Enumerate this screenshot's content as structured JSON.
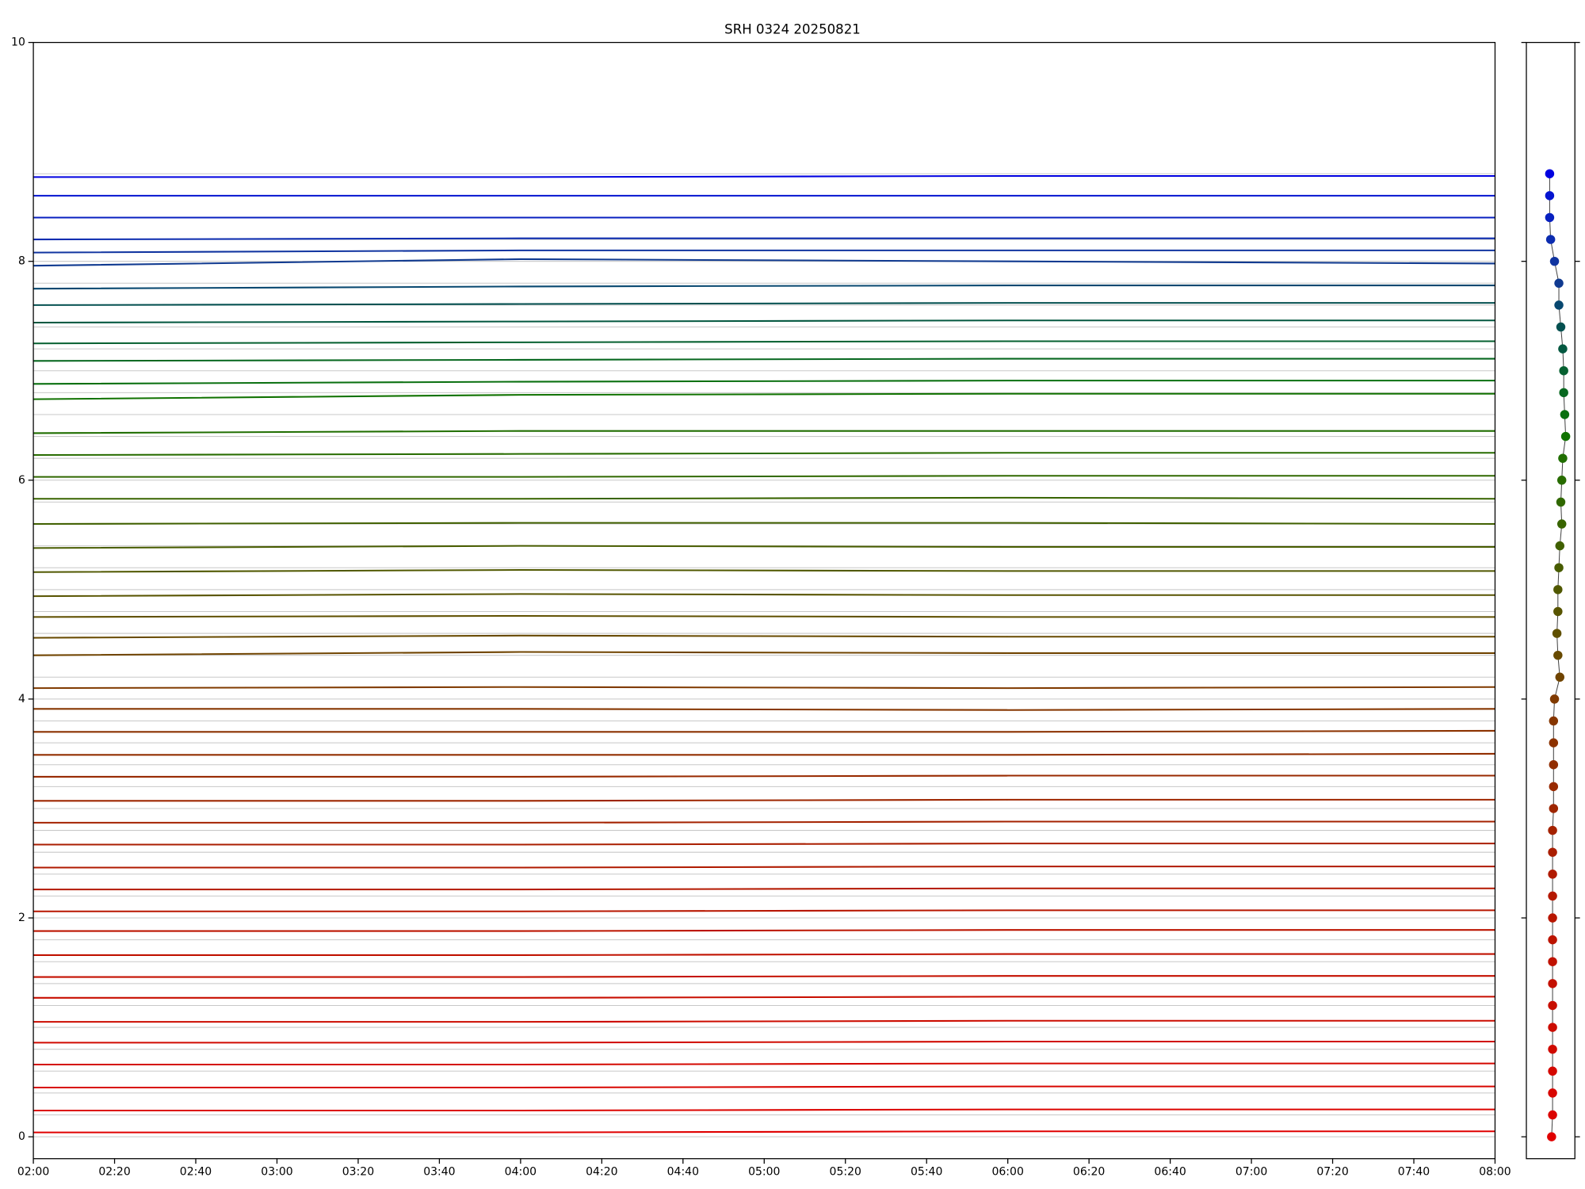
{
  "chart_data": [
    {
      "type": "line",
      "title": "SRH 0324 20250821",
      "x": [
        "02:00",
        "04:00",
        "06:00",
        "08:00"
      ],
      "xlim": [
        "02:00",
        "08:00"
      ],
      "xticks": [
        "02:00",
        "02:20",
        "02:40",
        "03:00",
        "03:20",
        "03:40",
        "04:00",
        "04:20",
        "04:40",
        "05:00",
        "05:20",
        "05:40",
        "06:00",
        "06:20",
        "06:40",
        "07:00",
        "07:20",
        "07:40",
        "08:00"
      ],
      "ylim": [
        -0.2,
        10
      ],
      "yticks": [
        0,
        2,
        4,
        6,
        8,
        10
      ],
      "series": [
        {
          "color": "#e00000",
          "values": [
            0.04,
            0.04,
            0.05,
            0.05
          ]
        },
        {
          "color": "#dc0400",
          "values": [
            0.24,
            0.24,
            0.25,
            0.25
          ]
        },
        {
          "color": "#d80600",
          "values": [
            0.45,
            0.45,
            0.46,
            0.46
          ]
        },
        {
          "color": "#d40800",
          "values": [
            0.66,
            0.66,
            0.67,
            0.67
          ]
        },
        {
          "color": "#d00a00",
          "values": [
            0.86,
            0.86,
            0.87,
            0.87
          ]
        },
        {
          "color": "#cc0c00",
          "values": [
            1.05,
            1.05,
            1.06,
            1.06
          ]
        },
        {
          "color": "#c80e00",
          "values": [
            1.27,
            1.27,
            1.28,
            1.28
          ]
        },
        {
          "color": "#c41000",
          "values": [
            1.46,
            1.46,
            1.47,
            1.47
          ]
        },
        {
          "color": "#c01200",
          "values": [
            1.66,
            1.66,
            1.67,
            1.67
          ]
        },
        {
          "color": "#bc1400",
          "values": [
            1.88,
            1.88,
            1.89,
            1.89
          ]
        },
        {
          "color": "#b81600",
          "values": [
            2.06,
            2.06,
            2.07,
            2.07
          ]
        },
        {
          "color": "#b41800",
          "values": [
            2.26,
            2.26,
            2.27,
            2.27
          ]
        },
        {
          "color": "#b01a00",
          "values": [
            2.46,
            2.46,
            2.47,
            2.47
          ]
        },
        {
          "color": "#aa1e00",
          "values": [
            2.67,
            2.67,
            2.68,
            2.68
          ]
        },
        {
          "color": "#a42200",
          "values": [
            2.87,
            2.87,
            2.88,
            2.88
          ]
        },
        {
          "color": "#9e2600",
          "values": [
            3.07,
            3.07,
            3.08,
            3.08
          ]
        },
        {
          "color": "#982a00",
          "values": [
            3.29,
            3.29,
            3.3,
            3.3
          ]
        },
        {
          "color": "#922e00",
          "values": [
            3.49,
            3.49,
            3.49,
            3.5
          ]
        },
        {
          "color": "#8c3200",
          "values": [
            3.7,
            3.7,
            3.7,
            3.71
          ]
        },
        {
          "color": "#863600",
          "values": [
            3.91,
            3.91,
            3.9,
            3.91
          ]
        },
        {
          "color": "#803a00",
          "values": [
            4.1,
            4.11,
            4.1,
            4.11
          ]
        },
        {
          "color": "#704400",
          "values": [
            4.4,
            4.43,
            4.42,
            4.42
          ]
        },
        {
          "color": "#684a00",
          "values": [
            4.56,
            4.58,
            4.57,
            4.57
          ]
        },
        {
          "color": "#605000",
          "values": [
            4.75,
            4.76,
            4.75,
            4.75
          ]
        },
        {
          "color": "#585400",
          "values": [
            4.94,
            4.96,
            4.95,
            4.95
          ]
        },
        {
          "color": "#505800",
          "values": [
            5.16,
            5.18,
            5.17,
            5.17
          ]
        },
        {
          "color": "#485c00",
          "values": [
            5.38,
            5.4,
            5.39,
            5.39
          ]
        },
        {
          "color": "#406000",
          "values": [
            5.6,
            5.61,
            5.61,
            5.6
          ]
        },
        {
          "color": "#386400",
          "values": [
            5.83,
            5.83,
            5.84,
            5.83
          ]
        },
        {
          "color": "#306800",
          "values": [
            6.03,
            6.03,
            6.04,
            6.04
          ]
        },
        {
          "color": "#286c00",
          "values": [
            6.23,
            6.24,
            6.25,
            6.25
          ]
        },
        {
          "color": "#206e00",
          "values": [
            6.43,
            6.45,
            6.45,
            6.45
          ]
        },
        {
          "color": "#107200",
          "values": [
            6.74,
            6.78,
            6.79,
            6.79
          ]
        },
        {
          "color": "#0a7010",
          "values": [
            6.88,
            6.9,
            6.91,
            6.91
          ]
        },
        {
          "color": "#086820",
          "values": [
            7.09,
            7.1,
            7.11,
            7.11
          ]
        },
        {
          "color": "#066030",
          "values": [
            7.25,
            7.26,
            7.27,
            7.27
          ]
        },
        {
          "color": "#045840",
          "values": [
            7.44,
            7.45,
            7.46,
            7.46
          ]
        },
        {
          "color": "#045050",
          "values": [
            7.6,
            7.61,
            7.62,
            7.62
          ]
        },
        {
          "color": "#084870",
          "values": [
            7.75,
            7.77,
            7.78,
            7.78
          ]
        },
        {
          "color": "#103a90",
          "values": [
            7.96,
            8.02,
            8.0,
            7.98
          ]
        },
        {
          "color": "#1034a0",
          "values": [
            8.08,
            8.1,
            8.1,
            8.1
          ]
        },
        {
          "color": "#0c2cb0",
          "values": [
            8.2,
            8.21,
            8.21,
            8.21
          ]
        },
        {
          "color": "#0820c0",
          "values": [
            8.4,
            8.4,
            8.4,
            8.4
          ]
        },
        {
          "color": "#0414d0",
          "values": [
            8.6,
            8.6,
            8.6,
            8.6
          ]
        },
        {
          "color": "#0000e0",
          "values": [
            8.77,
            8.77,
            8.78,
            8.78
          ]
        }
      ]
    },
    {
      "type": "scatter",
      "xlim": [
        0,
        1
      ],
      "ylim": [
        -0.2,
        10
      ],
      "yticks": [
        0,
        2,
        4,
        6,
        8,
        10
      ],
      "line_color": "#444444",
      "x": [
        0.52,
        0.54,
        0.54,
        0.54,
        0.54,
        0.54,
        0.54,
        0.54,
        0.54,
        0.54,
        0.54,
        0.54,
        0.54,
        0.54,
        0.54,
        0.56,
        0.56,
        0.56,
        0.56,
        0.56,
        0.58,
        0.69,
        0.65,
        0.63,
        0.65,
        0.65,
        0.67,
        0.69,
        0.73,
        0.71,
        0.73,
        0.75,
        0.81,
        0.79,
        0.77,
        0.77,
        0.75,
        0.71,
        0.67,
        0.67,
        0.58,
        0.5,
        0.48,
        0.48,
        0.48
      ],
      "values": [
        0,
        0.2,
        0.4,
        0.6,
        0.8,
        1,
        1.2,
        1.4,
        1.6,
        1.8,
        2,
        2.2,
        2.4,
        2.6,
        2.8,
        3,
        3.2,
        3.4,
        3.6,
        3.8,
        4,
        4.2,
        4.4,
        4.6,
        4.8,
        5,
        5.2,
        5.4,
        5.6,
        5.8,
        6,
        6.2,
        6.4,
        6.6,
        6.8,
        7,
        7.2,
        7.4,
        7.6,
        7.8,
        8,
        8.2,
        8.4,
        8.6,
        8.8
      ],
      "colors": [
        "#e00000",
        "#dc0400",
        "#d80600",
        "#d40800",
        "#d00a00",
        "#cc0c00",
        "#c80e00",
        "#c41000",
        "#c01200",
        "#bc1400",
        "#b81600",
        "#b41800",
        "#b01a00",
        "#aa1e00",
        "#a42200",
        "#9e2600",
        "#982a00",
        "#922e00",
        "#8c3200",
        "#863600",
        "#803a00",
        "#704400",
        "#684a00",
        "#605000",
        "#585400",
        "#505800",
        "#485c00",
        "#406000",
        "#386400",
        "#306800",
        "#286c00",
        "#206e00",
        "#107200",
        "#0a7010",
        "#086820",
        "#066030",
        "#045840",
        "#045050",
        "#084870",
        "#103a90",
        "#1034a0",
        "#0c2cb0",
        "#0820c0",
        "#0414d0",
        "#0000e0"
      ]
    }
  ]
}
